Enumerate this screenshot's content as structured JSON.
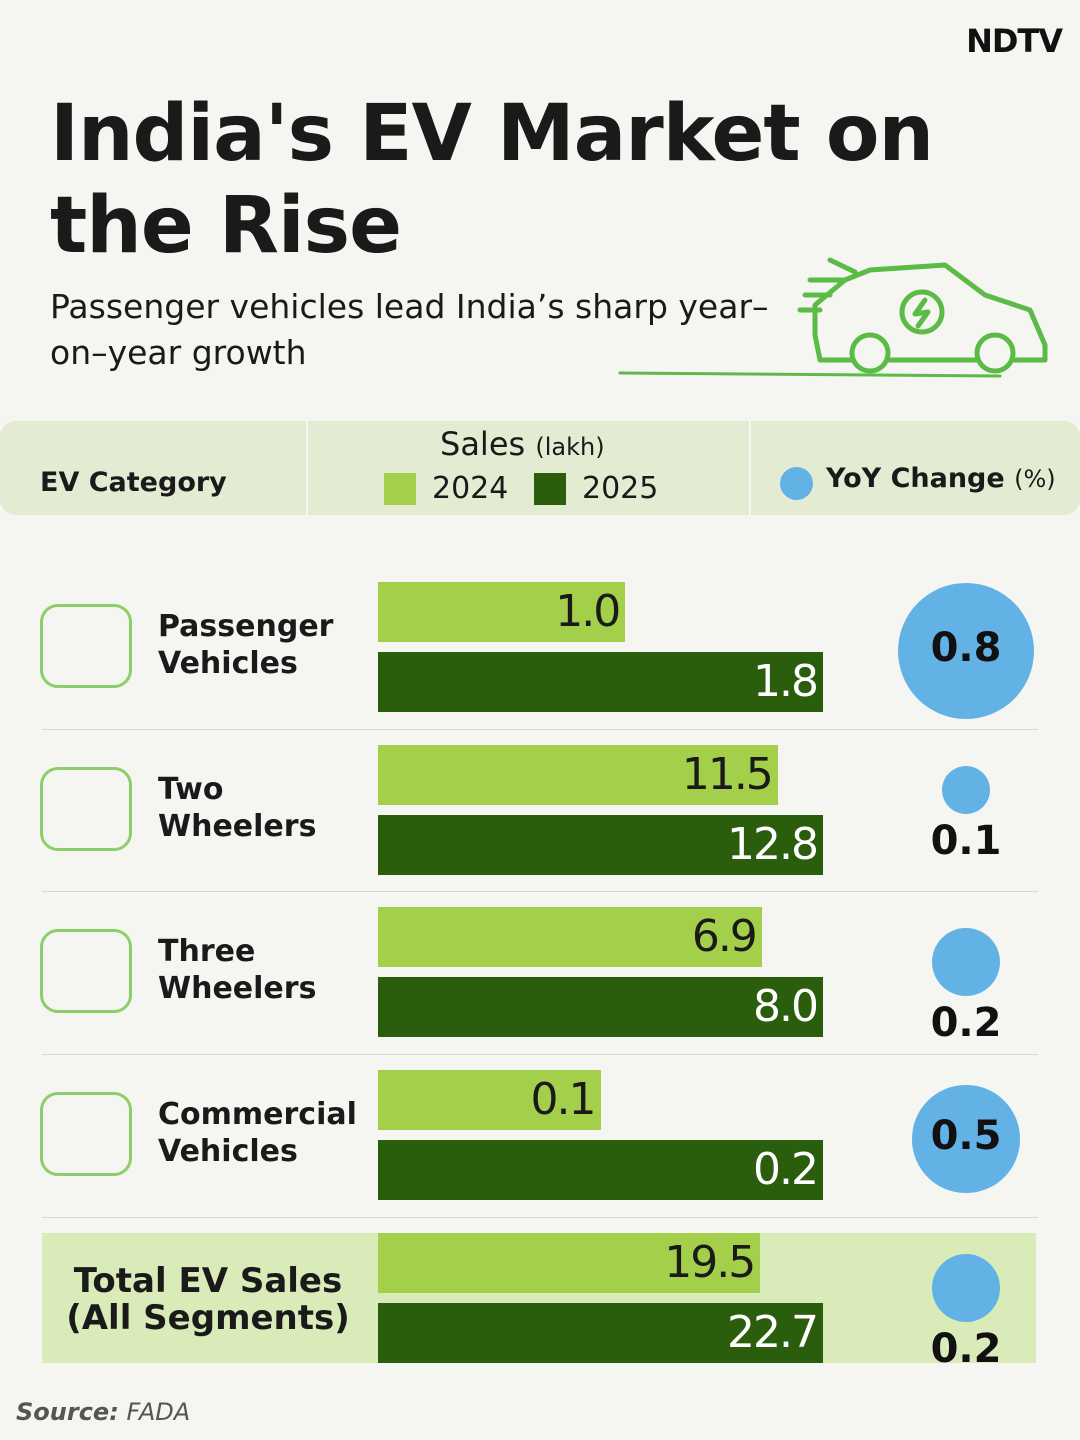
{
  "logo": "NDTV",
  "chart_data": {
    "type": "bar",
    "title": "India's EV Market on the Rise",
    "subtitle": "Passenger vehicles lead India’s sharp year–on–year growth",
    "category_header": "EV Category",
    "sales_header": "Sales",
    "sales_unit": "(lakh)",
    "yoy_header": "YoY Change",
    "yoy_unit": "(%)",
    "categories": [
      "Passenger Vehicles",
      "Two Wheelers",
      "Three Wheelers",
      "Commercial Vehicles",
      "Total EV Sales (All Segments)"
    ],
    "series": [
      {
        "name": "2024",
        "color": "#a3cf4a",
        "values": [
          1.0,
          11.5,
          6.9,
          0.1,
          19.5
        ],
        "value_labels": [
          "1.0",
          "11.5",
          "6.9",
          "0.1",
          "19.5"
        ]
      },
      {
        "name": "2025",
        "color": "#2b5e0c",
        "values": [
          1.8,
          12.8,
          8.0,
          0.2,
          22.7
        ],
        "value_labels": [
          "1.8",
          "12.8",
          "8.0",
          "0.2",
          "22.7"
        ]
      }
    ],
    "yoy": {
      "color": "#62b2e6",
      "values": [
        0.8,
        0.1,
        0.2,
        0.5,
        0.2
      ]
    },
    "source_label": "Source:",
    "source": "FADA"
  }
}
